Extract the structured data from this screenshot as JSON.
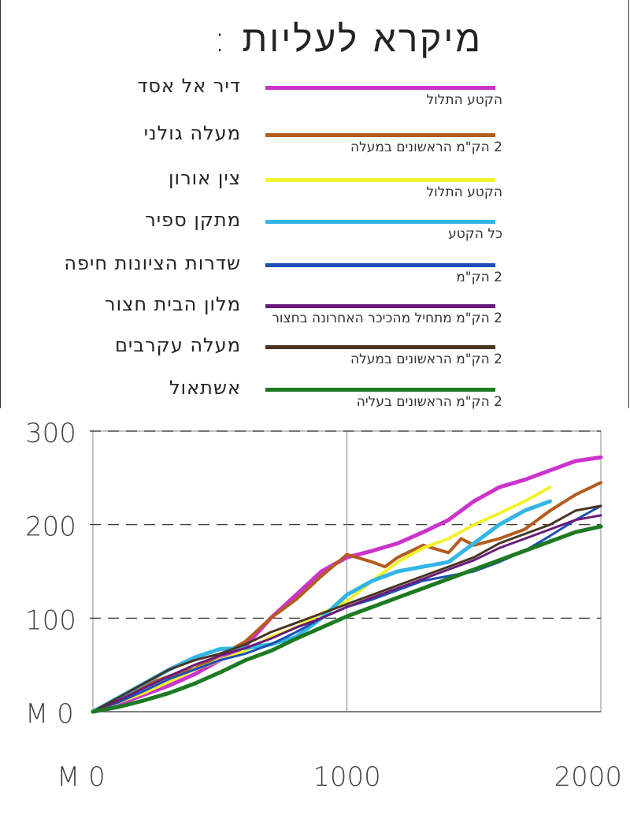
{
  "legend": {
    "title": "מיקרא לעליות :",
    "items": [
      {
        "name": "דיר אל אסד",
        "note": "הקטע התלול",
        "color": "#cc33cc"
      },
      {
        "name": "מעלה גולני",
        "note": "2 הק\"מ הראשונים במעלה",
        "color": "#b35c1e"
      },
      {
        "name": "צין אורון",
        "note": "הקטע התלול",
        "color": "#f2f22c"
      },
      {
        "name": "מתקן ספיר",
        "note": "כל הקטע",
        "color": "#33b5e5"
      },
      {
        "name": "שדרות הציונות חיפה",
        "note": "2 הק\"מ",
        "color": "#1a4fb5"
      },
      {
        "name": "מלון הבית חצור",
        "note": "2 הק\"מ מתחיל מהכיכר האחרונה בחצור",
        "color": "#6a1a7a"
      },
      {
        "name": "מעלה עקרבים",
        "note": "2 הק\"מ הראשונים במעלה",
        "color": "#4a3422"
      },
      {
        "name": "אשתאול",
        "note": "2 הק\"מ הראשונים בעליה",
        "color": "#1e7a22"
      }
    ]
  },
  "chart_data": {
    "type": "line",
    "x_ticks": [
      "M 0",
      "1000",
      "2000"
    ],
    "y_ticks": [
      "M 0",
      "100",
      "200",
      "300"
    ],
    "xlim": [
      0,
      2000
    ],
    "ylim": [
      0,
      300
    ],
    "grid": "dashed horizontal at 100, 200, 300; vertical at 1000",
    "series": [
      {
        "name": "דיר אל אסד",
        "color": "#cc33cc",
        "width": 5,
        "x": [
          0,
          100,
          200,
          300,
          400,
          500,
          600,
          700,
          800,
          900,
          1000,
          1100,
          1200,
          1300,
          1400,
          1500,
          1600,
          1700,
          1800,
          1900,
          2000
        ],
        "y": [
          0,
          8,
          18,
          28,
          40,
          55,
          70,
          100,
          125,
          150,
          165,
          172,
          180,
          192,
          205,
          225,
          240,
          248,
          258,
          268,
          272
        ]
      },
      {
        "name": "מעלה גולני",
        "color": "#b35c1e",
        "width": 4,
        "x": [
          0,
          100,
          200,
          300,
          400,
          500,
          600,
          700,
          800,
          900,
          1000,
          1100,
          1150,
          1200,
          1300,
          1400,
          1450,
          1500,
          1600,
          1700,
          1800,
          1900,
          2000
        ],
        "y": [
          0,
          12,
          28,
          38,
          46,
          60,
          75,
          100,
          120,
          145,
          168,
          160,
          155,
          165,
          178,
          170,
          185,
          178,
          185,
          195,
          215,
          232,
          245
        ]
      },
      {
        "name": "צין אורון",
        "color": "#f2f22c",
        "width": 4,
        "x": [
          0,
          100,
          200,
          300,
          400,
          500,
          600,
          700,
          800,
          900,
          1000,
          1100,
          1200,
          1300,
          1400,
          1500,
          1600,
          1700,
          1800
        ],
        "y": [
          0,
          10,
          20,
          32,
          45,
          55,
          65,
          80,
          90,
          105,
          118,
          140,
          160,
          175,
          185,
          200,
          212,
          225,
          240
        ]
      },
      {
        "name": "מתקן ספיר",
        "color": "#33b5e5",
        "width": 5,
        "x": [
          0,
          100,
          200,
          300,
          400,
          500,
          600,
          700,
          800,
          900,
          1000,
          1100,
          1200,
          1300,
          1400,
          1500,
          1600,
          1700,
          1800
        ],
        "y": [
          0,
          15,
          30,
          45,
          58,
          67,
          68,
          72,
          80,
          100,
          125,
          140,
          150,
          155,
          160,
          180,
          200,
          215,
          225
        ]
      },
      {
        "name": "שדרות הציונות חיפה",
        "color": "#1a4fb5",
        "width": 3,
        "x": [
          0,
          100,
          200,
          300,
          400,
          500,
          600,
          700,
          800,
          900,
          1000,
          1100,
          1200,
          1300,
          1400,
          1500,
          1600,
          1700,
          1800,
          1900,
          2000
        ],
        "y": [
          0,
          10,
          22,
          35,
          45,
          55,
          62,
          72,
          85,
          100,
          112,
          120,
          130,
          140,
          145,
          150,
          160,
          172,
          188,
          205,
          220
        ]
      },
      {
        "name": "מלון הבית חצור",
        "color": "#6a1a7a",
        "width": 3,
        "x": [
          0,
          100,
          200,
          300,
          400,
          500,
          600,
          700,
          800,
          900,
          1000,
          1100,
          1200,
          1300,
          1400,
          1500,
          1600,
          1700,
          1800,
          1900,
          2000
        ],
        "y": [
          0,
          12,
          25,
          38,
          50,
          60,
          68,
          78,
          90,
          100,
          112,
          122,
          132,
          142,
          152,
          162,
          175,
          185,
          195,
          205,
          210
        ]
      },
      {
        "name": "מעלה עקרבים",
        "color": "#4a3422",
        "width": 3,
        "x": [
          0,
          100,
          200,
          300,
          400,
          500,
          600,
          700,
          800,
          900,
          1000,
          1100,
          1200,
          1300,
          1400,
          1500,
          1600,
          1700,
          1800,
          1900,
          2000
        ],
        "y": [
          0,
          15,
          30,
          45,
          55,
          62,
          72,
          85,
          95,
          105,
          115,
          125,
          135,
          145,
          155,
          165,
          180,
          190,
          200,
          215,
          220
        ]
      },
      {
        "name": "אשתאול",
        "color": "#1e7a22",
        "width": 5,
        "x": [
          0,
          100,
          200,
          300,
          400,
          500,
          600,
          700,
          800,
          900,
          1000,
          1100,
          1200,
          1300,
          1400,
          1500,
          1600,
          1700,
          1800,
          1900,
          2000
        ],
        "y": [
          0,
          5,
          12,
          20,
          30,
          42,
          55,
          65,
          78,
          90,
          102,
          112,
          122,
          132,
          142,
          152,
          162,
          172,
          182,
          192,
          198
        ]
      }
    ]
  }
}
